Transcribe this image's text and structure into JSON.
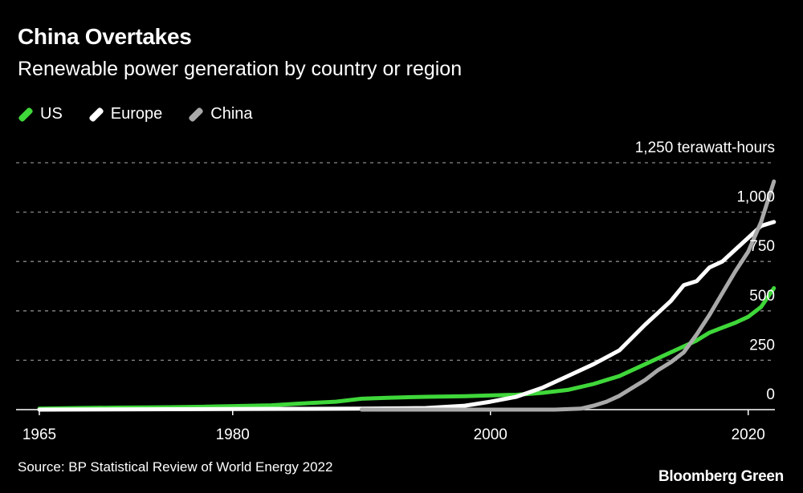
{
  "title": "China Overtakes",
  "subtitle": "Renewable power generation by country or region",
  "source": "Source: BP Statistical Review of World Energy 2022",
  "brand": "Bloomberg Green",
  "chart_data": {
    "type": "line",
    "title": "China Overtakes",
    "subtitle": "Renewable power generation by country or region",
    "unit_label": "1,250 terawatt-hours",
    "x_ticks": [
      1965,
      1980,
      2000,
      2020
    ],
    "y_ticks": [
      0,
      250,
      500,
      750,
      1000,
      1250
    ],
    "y_tick_labels": [
      "0",
      "250",
      "500",
      "750",
      "1,000",
      "1,250 terawatt-hours"
    ],
    "xlim": [
      1965,
      2025
    ],
    "ylim": [
      0,
      1250
    ],
    "grid": true,
    "legend_position": "top-left",
    "series": [
      {
        "name": "US",
        "color": "#3fd73a",
        "points": [
          [
            1965,
            5
          ],
          [
            1968,
            8
          ],
          [
            1971,
            10
          ],
          [
            1975,
            12
          ],
          [
            1978,
            15
          ],
          [
            1980,
            18
          ],
          [
            1983,
            22
          ],
          [
            1985,
            30
          ],
          [
            1988,
            40
          ],
          [
            1990,
            55
          ],
          [
            1992,
            60
          ],
          [
            1995,
            65
          ],
          [
            1998,
            68
          ],
          [
            2000,
            72
          ],
          [
            2002,
            75
          ],
          [
            2004,
            85
          ],
          [
            2006,
            100
          ],
          [
            2008,
            130
          ],
          [
            2010,
            170
          ],
          [
            2012,
            230
          ],
          [
            2014,
            290
          ],
          [
            2016,
            350
          ],
          [
            2017,
            390
          ],
          [
            2018,
            415
          ],
          [
            2019,
            440
          ],
          [
            2020,
            470
          ],
          [
            2021,
            520
          ],
          [
            2022,
            615
          ]
        ]
      },
      {
        "name": "Europe",
        "color": "#ffffff",
        "points": [
          [
            1965,
            0
          ],
          [
            1970,
            1
          ],
          [
            1975,
            2
          ],
          [
            1980,
            3
          ],
          [
            1985,
            4
          ],
          [
            1990,
            5
          ],
          [
            1995,
            8
          ],
          [
            1998,
            20
          ],
          [
            2000,
            40
          ],
          [
            2002,
            65
          ],
          [
            2004,
            110
          ],
          [
            2006,
            170
          ],
          [
            2008,
            230
          ],
          [
            2010,
            300
          ],
          [
            2012,
            430
          ],
          [
            2013,
            490
          ],
          [
            2014,
            550
          ],
          [
            2015,
            630
          ],
          [
            2016,
            650
          ],
          [
            2017,
            720
          ],
          [
            2018,
            750
          ],
          [
            2019,
            810
          ],
          [
            2020,
            870
          ],
          [
            2021,
            930
          ],
          [
            2022,
            950
          ]
        ]
      },
      {
        "name": "China",
        "color": "#a9a9a9",
        "points": [
          [
            1990,
            0
          ],
          [
            1995,
            0
          ],
          [
            2000,
            0
          ],
          [
            2003,
            0
          ],
          [
            2005,
            0
          ],
          [
            2007,
            5
          ],
          [
            2008,
            20
          ],
          [
            2009,
            40
          ],
          [
            2010,
            70
          ],
          [
            2011,
            110
          ],
          [
            2012,
            150
          ],
          [
            2013,
            200
          ],
          [
            2014,
            240
          ],
          [
            2015,
            290
          ],
          [
            2016,
            380
          ],
          [
            2017,
            480
          ],
          [
            2018,
            590
          ],
          [
            2019,
            700
          ],
          [
            2020,
            800
          ],
          [
            2021,
            950
          ],
          [
            2022,
            1155
          ]
        ]
      }
    ]
  }
}
